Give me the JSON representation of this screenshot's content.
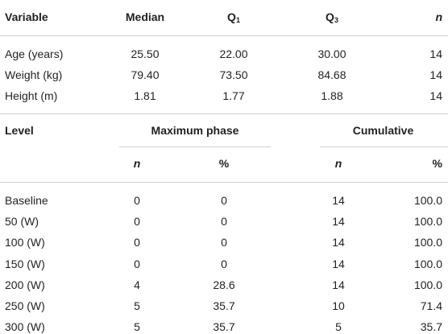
{
  "table1": {
    "headers": {
      "variable": "Variable",
      "median": "Median",
      "q1": "Q",
      "q1_sub": "1",
      "q3": "Q",
      "q3_sub": "3",
      "n": "n"
    },
    "rows": [
      {
        "variable": "Age (years)",
        "median": "25.50",
        "q1": "22.00",
        "q3": "30.00",
        "n": "14"
      },
      {
        "variable": "Weight (kg)",
        "median": "79.40",
        "q1": "73.50",
        "q3": "84.68",
        "n": "14"
      },
      {
        "variable": "Height (m)",
        "median": "1.81",
        "q1": "1.77",
        "q3": "1.88",
        "n": "14"
      }
    ]
  },
  "table2": {
    "headers": {
      "level": "Level",
      "max_phase": "Maximum phase",
      "cumulative": "Cumulative",
      "n": "n",
      "pct": "%"
    },
    "rows": [
      {
        "level": "Baseline",
        "max_n": "0",
        "max_pct": "0",
        "cum_n": "14",
        "cum_pct": "100.0"
      },
      {
        "level": "50 (W)",
        "max_n": "0",
        "max_pct": "0",
        "cum_n": "14",
        "cum_pct": "100.0"
      },
      {
        "level": "100 (W)",
        "max_n": "0",
        "max_pct": "0",
        "cum_n": "14",
        "cum_pct": "100.0"
      },
      {
        "level": "150 (W)",
        "max_n": "0",
        "max_pct": "0",
        "cum_n": "14",
        "cum_pct": "100.0"
      },
      {
        "level": "200 (W)",
        "max_n": "4",
        "max_pct": "28.6",
        "cum_n": "14",
        "cum_pct": "100.0"
      },
      {
        "level": "250 (W)",
        "max_n": "5",
        "max_pct": "35.7",
        "cum_n": "10",
        "cum_pct": "71.4"
      },
      {
        "level": "300 (W)",
        "max_n": "5",
        "max_pct": "35.7",
        "cum_n": "5",
        "cum_pct": "35.7"
      }
    ]
  }
}
